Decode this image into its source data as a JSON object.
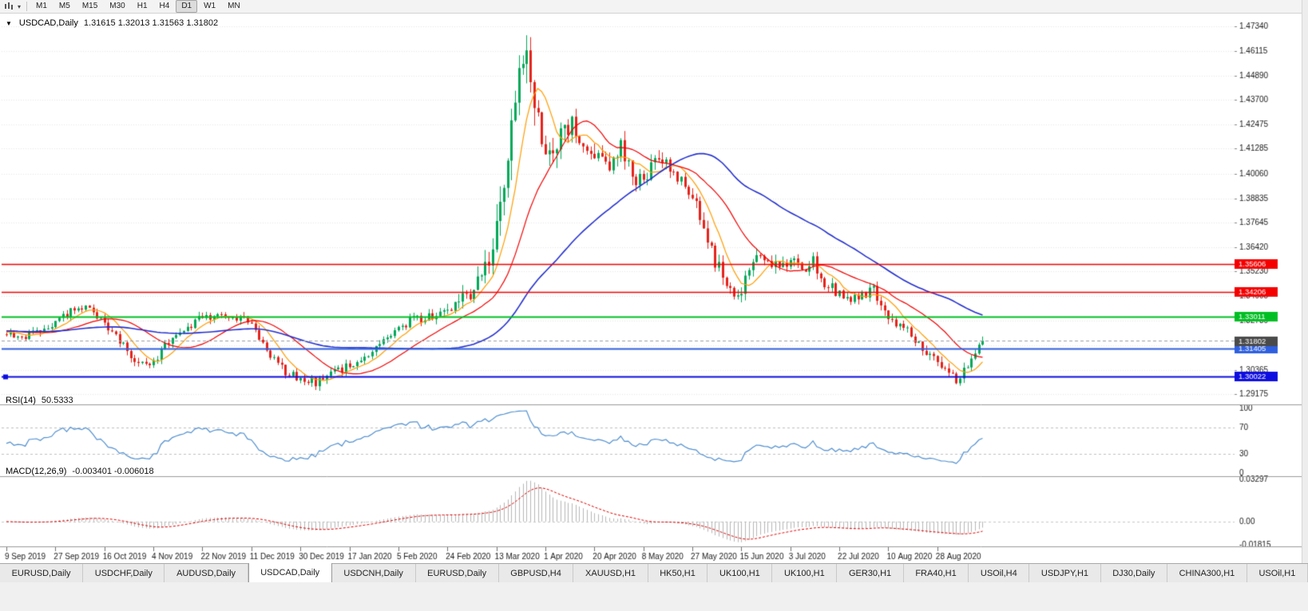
{
  "icons": {
    "marker": "▼",
    "caret": "▾"
  },
  "toolbar": {
    "timeframes": [
      "M1",
      "M5",
      "M15",
      "M30",
      "H1",
      "H4",
      "D1",
      "W1",
      "MN"
    ],
    "active_timeframe": "D1"
  },
  "chart": {
    "symbol_period": "USDCAD,Daily",
    "ohlc_text": "1.31615 1.32013 1.31563 1.31802"
  },
  "rsi_panel": {
    "label": "RSI(14)",
    "value": "50.5333",
    "axis_labels": [
      "100",
      "70",
      "30",
      "0"
    ]
  },
  "macd_panel": {
    "label": "MACD(12,26,9)",
    "values": "-0.003401 -0.006018",
    "axis_labels": [
      "0.03297",
      "0.00",
      "-0.01815"
    ]
  },
  "tabs": {
    "active_index": 3,
    "items": [
      "EURUSD,Daily",
      "USDCHF,Daily",
      "AUDUSD,Daily",
      "USDCAD,Daily",
      "USDCNH,Daily",
      "EURUSD,Daily",
      "GBPUSD,H4",
      "XAUUSD,H1",
      "HK50,H1",
      "UK100,H1",
      "UK100,H1",
      "GER30,H1",
      "FRA40,H1",
      "USOil,H4",
      "USDJPY,H1",
      "DJ30,Daily",
      "CHINA300,H1",
      "USOil,H1"
    ]
  },
  "chart_data": {
    "type": "candlestick",
    "symbol": "USDCAD",
    "period": "Daily",
    "last_bar": {
      "open": 1.31615,
      "high": 1.32013,
      "low": 1.31563,
      "close": 1.31802
    },
    "bar_count": 260,
    "label_every": 13,
    "seed": 20200908,
    "date_labels": [
      "9 Sep 2019",
      "27 Sep 2019",
      "16 Oct 2019",
      "4 Nov 2019",
      "22 Nov 2019",
      "11 Dec 2019",
      "30 Dec 2019",
      "17 Jan 2020",
      "5 Feb 2020",
      "24 Feb 2020",
      "13 Mar 2020",
      "1 Apr 2020",
      "20 Apr 2020",
      "8 May 2020",
      "27 May 2020",
      "15 Jun 2020",
      "3 Jul 2020",
      "22 Jul 2020",
      "10 Aug 2020",
      "28 Aug 2020"
    ],
    "price_axis_labels": [
      "1.47340",
      "1.46115",
      "1.44890",
      "1.43700",
      "1.42475",
      "1.41285",
      "1.40060",
      "1.38835",
      "1.37645",
      "1.36420",
      "1.35230",
      "1.34005",
      "1.32780",
      "1.31590",
      "1.30365",
      "1.29175"
    ],
    "price_scale": {
      "top": 1.478,
      "bottom": 1.287
    },
    "close_anchors": [
      [
        0,
        1.323
      ],
      [
        4,
        1.319
      ],
      [
        8,
        1.323
      ],
      [
        13,
        1.326
      ],
      [
        17,
        1.3335
      ],
      [
        21,
        1.3345
      ],
      [
        24,
        1.33
      ],
      [
        26,
        1.327
      ],
      [
        29,
        1.32
      ],
      [
        32,
        1.313
      ],
      [
        35,
        1.306
      ],
      [
        39,
        1.3085
      ],
      [
        43,
        1.317
      ],
      [
        47,
        1.323
      ],
      [
        52,
        1.33
      ],
      [
        57,
        1.331
      ],
      [
        61,
        1.3295
      ],
      [
        65,
        1.327
      ],
      [
        68,
        1.3165
      ],
      [
        71,
        1.309
      ],
      [
        74,
        1.303
      ],
      [
        78,
        1.2985
      ],
      [
        82,
        1.2975
      ],
      [
        86,
        1.301
      ],
      [
        91,
        1.306
      ],
      [
        95,
        1.311
      ],
      [
        99,
        1.3155
      ],
      [
        104,
        1.324
      ],
      [
        108,
        1.3285
      ],
      [
        112,
        1.33
      ],
      [
        117,
        1.332
      ],
      [
        120,
        1.338
      ],
      [
        123,
        1.342
      ],
      [
        126,
        1.356
      ],
      [
        128,
        1.362
      ],
      [
        130,
        1.372
      ],
      [
        132,
        1.398
      ],
      [
        134,
        1.424
      ],
      [
        136,
        1.448
      ],
      [
        138,
        1.462
      ],
      [
        140,
        1.435
      ],
      [
        142,
        1.415
      ],
      [
        144,
        1.405
      ],
      [
        147,
        1.418
      ],
      [
        150,
        1.425
      ],
      [
        153,
        1.418
      ],
      [
        156,
        1.412
      ],
      [
        160,
        1.405
      ],
      [
        163,
        1.413
      ],
      [
        166,
        1.399
      ],
      [
        169,
        1.396
      ],
      [
        172,
        1.41
      ],
      [
        175,
        1.407
      ],
      [
        178,
        1.399
      ],
      [
        182,
        1.39
      ],
      [
        185,
        1.375
      ],
      [
        188,
        1.358
      ],
      [
        191,
        1.346
      ],
      [
        193,
        1.338
      ],
      [
        195,
        1.342
      ],
      [
        197,
        1.355
      ],
      [
        200,
        1.362
      ],
      [
        203,
        1.354
      ],
      [
        206,
        1.356
      ],
      [
        208,
        1.359
      ],
      [
        211,
        1.352
      ],
      [
        214,
        1.357
      ],
      [
        217,
        1.347
      ],
      [
        221,
        1.341
      ],
      [
        224,
        1.337
      ],
      [
        227,
        1.341
      ],
      [
        230,
        1.343
      ],
      [
        234,
        1.33
      ],
      [
        237,
        1.326
      ],
      [
        240,
        1.32
      ],
      [
        243,
        1.314
      ],
      [
        246,
        1.308
      ],
      [
        249,
        1.302
      ],
      [
        252,
        1.2995
      ],
      [
        254,
        1.304
      ],
      [
        256,
        1.31
      ],
      [
        258,
        1.3155
      ],
      [
        259,
        1.318
      ]
    ],
    "volatility_anchors": [
      [
        0,
        0.004
      ],
      [
        100,
        0.0042
      ],
      [
        118,
        0.0055
      ],
      [
        126,
        0.012
      ],
      [
        133,
        0.0185
      ],
      [
        140,
        0.017
      ],
      [
        148,
        0.012
      ],
      [
        158,
        0.009
      ],
      [
        170,
        0.0075
      ],
      [
        185,
        0.008
      ],
      [
        200,
        0.0065
      ],
      [
        215,
        0.0055
      ],
      [
        232,
        0.005
      ],
      [
        246,
        0.0055
      ],
      [
        259,
        0.0042
      ]
    ],
    "moving_averages": [
      {
        "period": 8,
        "color": "#ff9d00"
      },
      {
        "period": 21,
        "color": "#f40000"
      },
      {
        "period": 55,
        "color": "#2430cf"
      }
    ],
    "horizontal_lines": [
      {
        "price": 1.35606,
        "label": "1.35606",
        "color": "#f40000",
        "width": 1.3,
        "selected": false
      },
      {
        "price": 1.34206,
        "label": "1.34206",
        "color": "#f40000",
        "width": 1.3,
        "selected": false
      },
      {
        "price": 1.33011,
        "label": "1.33011",
        "color": "#00bf23",
        "width": 2,
        "selected": false
      },
      {
        "price": 1.31405,
        "label": "1.31405",
        "color": "#2e5fe0",
        "width": 2,
        "selected": false
      },
      {
        "price": 1.30022,
        "label": "1.30022",
        "color": "#0d0de0",
        "width": 2,
        "selected": true
      }
    ],
    "bid_line": {
      "price": 1.31802,
      "label": "1.31802",
      "line_color": "#9aa0a6",
      "tag_color": "#4a4a4a"
    },
    "colors": {
      "up": "#00a858",
      "down": "#e5231b",
      "rsi_line": "#4f8fd0",
      "macd_hist": "#b6b6b6",
      "macd_signal": "#e00000",
      "grid": "#e7e7e7"
    },
    "rsi": {
      "period": 14,
      "levels": [
        70,
        30
      ],
      "range": [
        0,
        100
      ]
    },
    "macd": {
      "fast": 12,
      "slow": 26,
      "signal_period": 9,
      "range": [
        -0.01815,
        0.03297
      ]
    }
  }
}
